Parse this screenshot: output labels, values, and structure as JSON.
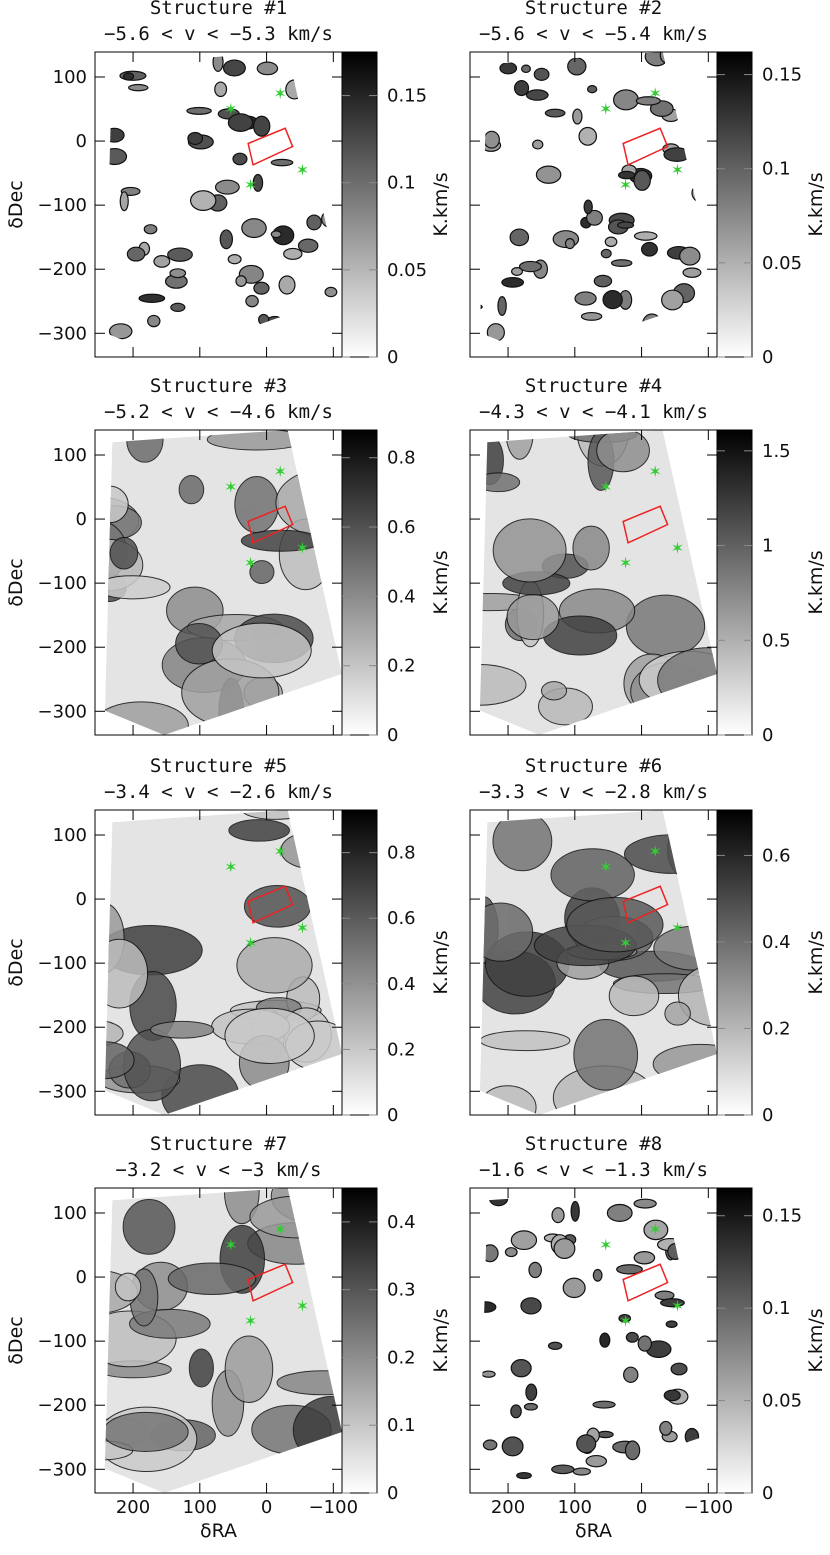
{
  "chart_data": [
    {
      "type": "image",
      "title": "Structure #1",
      "subtitle": "−5.6 < v < −5.3 km/s",
      "ylabel": "δDec",
      "xlim": [
        257,
        -113
      ],
      "ylim": [
        -337,
        139
      ],
      "yticks": [
        {
          "value": -300,
          "label": "−300"
        },
        {
          "value": -200,
          "label": "−200"
        },
        {
          "value": -100,
          "label": "−100"
        },
        0,
        100
      ],
      "clim": [
        0,
        0.175
      ],
      "cticks": [
        0,
        0.05,
        0.1,
        0.15
      ],
      "colorbar_label": "K.km/s"
    },
    {
      "type": "image",
      "title": "Structure #2",
      "subtitle": "−5.6 < v < −5.4 km/s",
      "xlim": [
        257,
        -113
      ],
      "ylim": [
        -337,
        139
      ],
      "clim": [
        0,
        0.162
      ],
      "cticks": [
        0,
        0.05,
        0.1,
        0.15
      ],
      "colorbar_label": "K.km/s"
    },
    {
      "type": "image",
      "title": "Structure #3",
      "subtitle": "−5.2 < v < −4.6 km/s",
      "ylabel": "δDec",
      "xlim": [
        257,
        -113
      ],
      "ylim": [
        -337,
        139
      ],
      "yticks": [
        {
          "value": -300,
          "label": "−300"
        },
        {
          "value": -200,
          "label": "−200"
        },
        {
          "value": -100,
          "label": "−100"
        },
        0,
        100
      ],
      "clim": [
        0,
        0.88
      ],
      "cticks": [
        0,
        0.2,
        0.4,
        0.6,
        0.8
      ],
      "colorbar_label": "K.km/s"
    },
    {
      "type": "image",
      "title": "Structure #4",
      "subtitle": "−4.3 < v < −4.1 km/s",
      "xlim": [
        257,
        -113
      ],
      "ylim": [
        -337,
        139
      ],
      "clim": [
        0,
        1.61
      ],
      "cticks": [
        0,
        0.5,
        1,
        1.5
      ],
      "colorbar_label": "K.km/s"
    },
    {
      "type": "image",
      "title": "Structure #5",
      "subtitle": "−3.4 < v < −2.6 km/s",
      "ylabel": "δDec",
      "xlim": [
        257,
        -113
      ],
      "ylim": [
        -337,
        139
      ],
      "yticks": [
        {
          "value": -300,
          "label": "−300"
        },
        {
          "value": -200,
          "label": "−200"
        },
        {
          "value": -100,
          "label": "−100"
        },
        0,
        100
      ],
      "clim": [
        0,
        0.93
      ],
      "cticks": [
        0,
        0.2,
        0.4,
        0.6,
        0.8
      ],
      "colorbar_label": "K.km/s"
    },
    {
      "type": "image",
      "title": "Structure #6",
      "subtitle": "−3.3 < v < −2.8 km/s",
      "xlim": [
        257,
        -113
      ],
      "ylim": [
        -337,
        139
      ],
      "clim": [
        0,
        0.705
      ],
      "cticks": [
        0,
        0.2,
        0.4,
        0.6
      ],
      "colorbar_label": "K.km/s"
    },
    {
      "type": "image",
      "title": "Structure #7",
      "subtitle": "−3.2 < v < −3 km/s",
      "xlabel": "δRA",
      "ylabel": "δDec",
      "xlim": [
        257,
        -113
      ],
      "ylim": [
        -337,
        139
      ],
      "xticks": [
        200,
        100,
        0,
        {
          "value": -100,
          "label": "−100"
        }
      ],
      "yticks": [
        {
          "value": -300,
          "label": "−300"
        },
        {
          "value": -200,
          "label": "−200"
        },
        {
          "value": -100,
          "label": "−100"
        },
        0,
        100
      ],
      "clim": [
        0,
        0.45
      ],
      "cticks": [
        0,
        0.1,
        0.2,
        0.3,
        0.4
      ],
      "colorbar_label": "K.km/s"
    },
    {
      "type": "image",
      "title": "Structure #8",
      "subtitle": "−1.6 < v < −1.3 km/s",
      "xlabel": "δRA",
      "xlim": [
        257,
        -113
      ],
      "ylim": [
        -337,
        139
      ],
      "xticks": [
        200,
        100,
        0,
        {
          "value": -100,
          "label": "−100"
        }
      ],
      "clim": [
        0,
        0.165
      ],
      "cticks": [
        0,
        0.05,
        0.1,
        0.15
      ],
      "colorbar_label": "K.km/s"
    }
  ]
}
